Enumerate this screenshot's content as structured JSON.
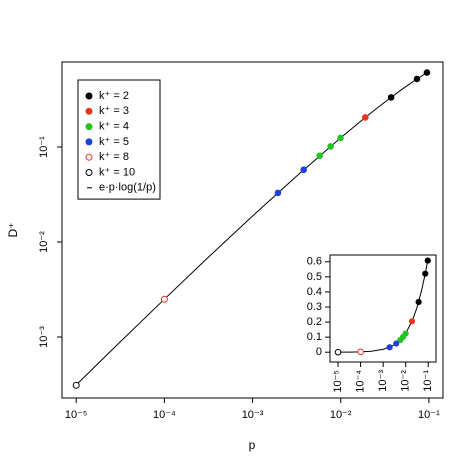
{
  "chart_data": [
    {
      "type": "scatter",
      "x_label": "p",
      "y_label": "D⁺",
      "log_x": true,
      "log_y": true,
      "xlim": [
        6.9e-06,
        0.1445
      ],
      "ylim": [
        0.000228,
        0.785
      ],
      "xticks": [
        {
          "value": 1e-05,
          "label": "10⁻⁵"
        },
        {
          "value": 0.0001,
          "label": "10⁻⁴"
        },
        {
          "value": 0.001,
          "label": "10⁻³"
        },
        {
          "value": 0.01,
          "label": "10⁻²"
        },
        {
          "value": 0.1,
          "label": "10⁻¹"
        }
      ],
      "yticks": [
        {
          "value": 0.001,
          "label": "10⁻³"
        },
        {
          "value": 0.01,
          "label": "10⁻²"
        },
        {
          "value": 0.1,
          "label": "10⁻¹"
        }
      ],
      "legend": "top-left",
      "series": [
        {
          "name": "k⁺ = 2",
          "color": "#000000",
          "marker": "filled",
          "x": [
            0.0373,
            0.0733,
            0.095
          ],
          "values": [
            0.333,
            0.521,
            0.608
          ]
        },
        {
          "name": "k⁺ = 3",
          "color": "#e8351f",
          "marker": "filled",
          "x": [
            0.019
          ],
          "values": [
            0.205
          ]
        },
        {
          "name": "k⁺ = 4",
          "color": "#22c422",
          "marker": "filled",
          "x": [
            0.00577,
            0.00767,
            0.00993
          ],
          "values": [
            0.0809,
            0.1015,
            0.1245
          ]
        },
        {
          "name": "k⁺ = 5",
          "color": "#1f3fd6",
          "marker": "filled",
          "x": [
            0.00194,
            0.0038
          ],
          "values": [
            0.0329,
            0.0576
          ]
        },
        {
          "name": "k⁺ = 8",
          "color": "#e8351f",
          "marker": "open",
          "x": [
            0.0001
          ],
          "values": [
            0.0025
          ]
        },
        {
          "name": "k⁺ = 10",
          "color": "#000000",
          "marker": "open",
          "x": [
            1e-05
          ],
          "values": [
            0.00031
          ]
        },
        {
          "name": "e·p·log(1/p)",
          "color": "#000000",
          "marker": "line",
          "x": [
            1e-05,
            3e-05,
            0.0001,
            0.0003,
            0.001,
            0.003,
            0.01,
            0.02,
            0.03,
            0.05,
            0.07,
            0.1
          ],
          "values": [
            0.000313,
            0.000849,
            0.0025,
            0.00662,
            0.01878,
            0.04737,
            0.1252,
            0.2127,
            0.286,
            0.4072,
            0.506,
            0.626
          ]
        }
      ]
    },
    {
      "type": "scatter",
      "log_x": true,
      "log_y": false,
      "xlim": [
        4.4e-06,
        0.22
      ],
      "ylim": [
        -0.065,
        0.645
      ],
      "xticks": [
        {
          "value": 1e-05,
          "label": "10⁻⁵"
        },
        {
          "value": 0.0001,
          "label": "10⁻⁴"
        },
        {
          "value": 0.001,
          "label": "10⁻³"
        },
        {
          "value": 0.01,
          "label": "10⁻²"
        },
        {
          "value": 0.1,
          "label": "10⁻¹"
        }
      ],
      "yticks": [
        0,
        0.1,
        0.2,
        0.3,
        0.4,
        0.5,
        0.6
      ],
      "series": [
        {
          "color": "#000000",
          "marker": "filled",
          "x": [
            0.0373,
            0.0733,
            0.095
          ],
          "values": [
            0.333,
            0.521,
            0.608
          ]
        },
        {
          "color": "#e8351f",
          "marker": "filled",
          "x": [
            0.019
          ],
          "values": [
            0.205
          ]
        },
        {
          "color": "#22c422",
          "marker": "filled",
          "x": [
            0.00577,
            0.00767,
            0.00993
          ],
          "values": [
            0.0809,
            0.1015,
            0.1245
          ]
        },
        {
          "color": "#1f3fd6",
          "marker": "filled",
          "x": [
            0.00194,
            0.0038
          ],
          "values": [
            0.0329,
            0.0576
          ]
        },
        {
          "color": "#e8351f",
          "marker": "open",
          "x": [
            0.0001
          ],
          "values": [
            0.0025
          ]
        },
        {
          "color": "#000000",
          "marker": "open",
          "x": [
            1e-05
          ],
          "values": [
            0.00031
          ]
        },
        {
          "color": "#000000",
          "marker": "line",
          "x": [
            1e-05,
            3e-05,
            0.0001,
            0.0003,
            0.001,
            0.003,
            0.01,
            0.02,
            0.03,
            0.05,
            0.07,
            0.1
          ],
          "values": [
            0.000313,
            0.000849,
            0.0025,
            0.00662,
            0.01878,
            0.04737,
            0.1252,
            0.2127,
            0.286,
            0.4072,
            0.506,
            0.626
          ]
        }
      ]
    }
  ]
}
